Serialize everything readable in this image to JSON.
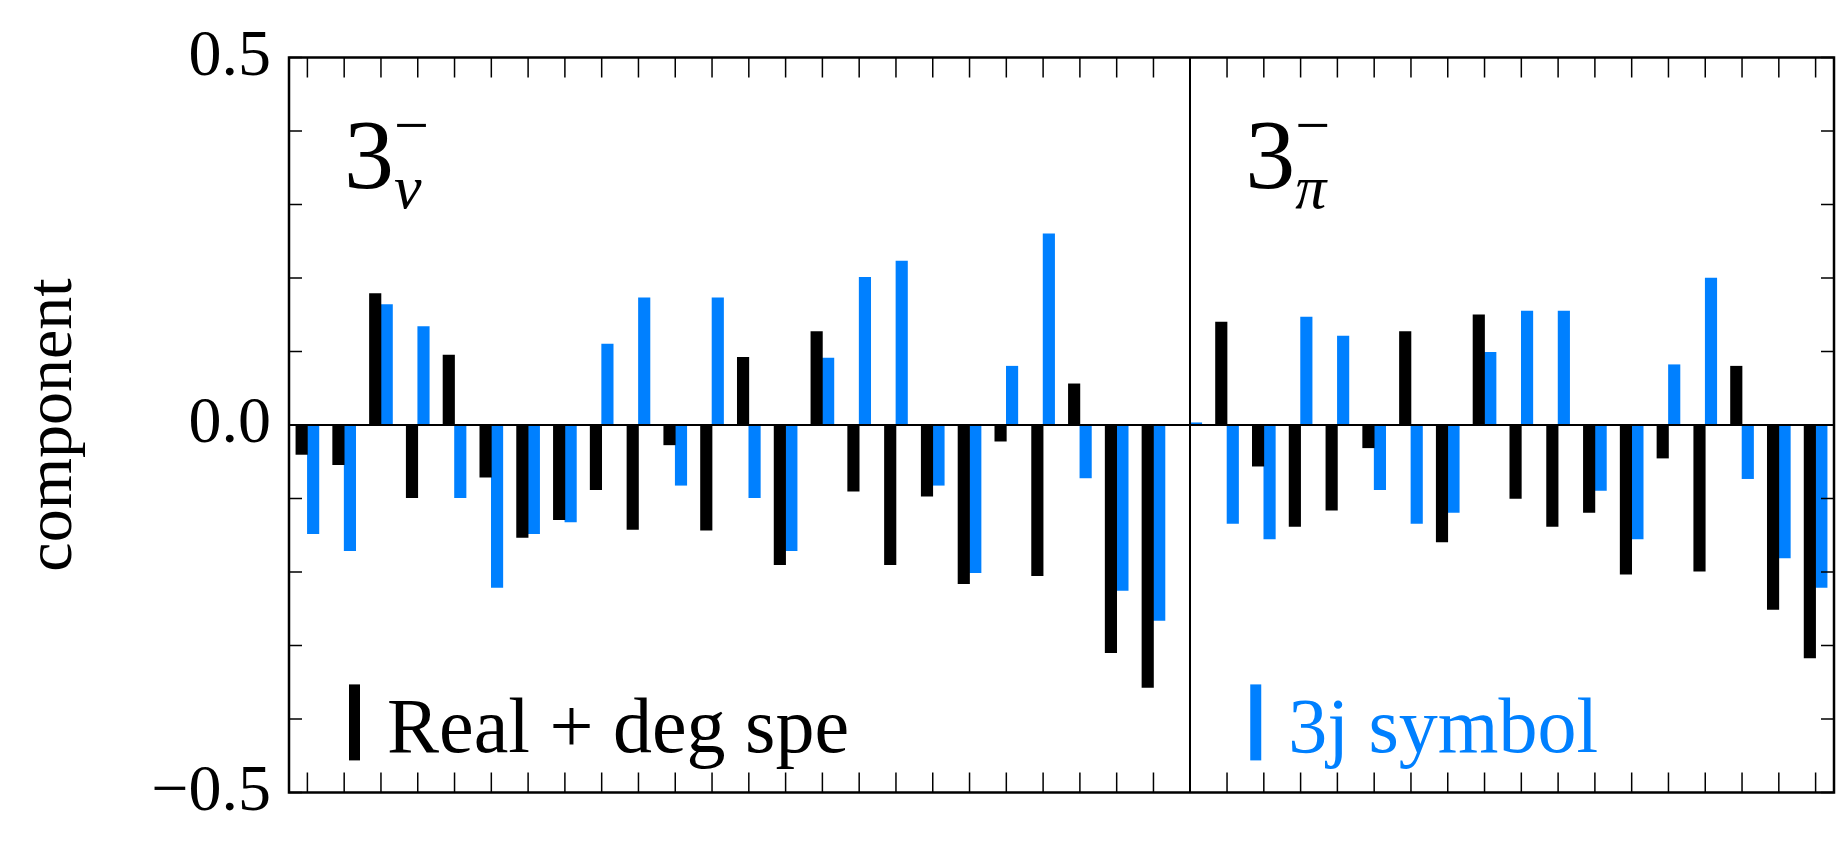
{
  "chart_data": {
    "type": "bar",
    "ylabel": "component",
    "categories": [
      null,
      null,
      null,
      null,
      null,
      null,
      null,
      null,
      null,
      null,
      null,
      null,
      null,
      null,
      null,
      null,
      null,
      null,
      null,
      null,
      null,
      null,
      null,
      null,
      null,
      null,
      null,
      null,
      null,
      null,
      null,
      null,
      null,
      null,
      null,
      null,
      null,
      null,
      null,
      null,
      null,
      null
    ],
    "series": [
      {
        "name": "Real + deg spe",
        "color": "#000000",
        "values": [
          -0.04,
          -0.054,
          0.179,
          -0.099,
          0.095,
          -0.071,
          -0.153,
          -0.129,
          -0.088,
          -0.142,
          -0.027,
          -0.143,
          0.092,
          -0.19,
          0.127,
          -0.09,
          -0.19,
          -0.097,
          -0.216,
          -0.022,
          -0.205,
          0.056,
          -0.31,
          -0.357,
          0,
          0.14,
          -0.056,
          -0.138,
          -0.116,
          -0.031,
          0.127,
          -0.159,
          0.15,
          -0.1,
          -0.138,
          -0.119,
          -0.203,
          -0.045,
          -0.199,
          0.08,
          -0.251,
          -0.317
        ]
      },
      {
        "name": "3j symbol",
        "color": "#0080ff",
        "values": [
          -0.148,
          -0.171,
          0.164,
          0.134,
          -0.099,
          -0.221,
          -0.148,
          -0.132,
          0.11,
          0.173,
          -0.082,
          0.173,
          -0.099,
          -0.171,
          0.091,
          0.201,
          0.223,
          -0.082,
          -0.201,
          0.08,
          0.26,
          -0.072,
          -0.225,
          -0.266,
          0.003,
          -0.134,
          -0.155,
          0.147,
          0.121,
          -0.088,
          -0.134,
          -0.119,
          0.099,
          0.155,
          0.155,
          -0.089,
          -0.155,
          0.082,
          0.2,
          -0.073,
          -0.181,
          -0.221
        ]
      }
    ],
    "ylim": [
      -0.5,
      0.5
    ],
    "yticks": [
      {
        "value": -0.5,
        "label": "−0.5"
      },
      {
        "value": -0.4,
        "label": null
      },
      {
        "value": -0.3,
        "label": null
      },
      {
        "value": -0.2,
        "label": null
      },
      {
        "value": -0.1,
        "label": null
      },
      {
        "value": 0,
        "label": "0.0"
      },
      {
        "value": 0.1,
        "label": null
      },
      {
        "value": 0.2,
        "label": null
      },
      {
        "value": 0.3,
        "label": null
      },
      {
        "value": 0.4,
        "label": null
      },
      {
        "value": 0.5,
        "label": "0.5"
      }
    ],
    "tick_labels": "y",
    "annotations": [
      "3$_{ν}$$^{−}$",
      "3$_{π}$$^{−}$"
    ],
    "legend": "bottom"
  }
}
